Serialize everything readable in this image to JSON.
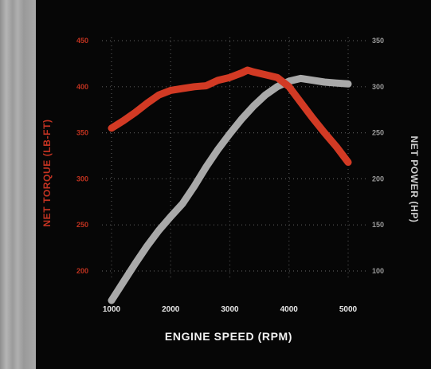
{
  "chart_data": {
    "type": "line",
    "title": "",
    "xlabel": "ENGINE SPEED (RPM)",
    "ylabel_left": "NET TORQUE (LB-FT)",
    "ylabel_right": "NET POWER (HP)",
    "xlim": [
      1000,
      5000
    ],
    "ylim_left": [
      200,
      450
    ],
    "ylim_right": [
      100,
      350
    ],
    "x_ticks": [
      "1000",
      "2000",
      "3000",
      "4000",
      "5000"
    ],
    "y_ticks_left": [
      "200",
      "250",
      "300",
      "350",
      "400",
      "450"
    ],
    "y_ticks_right": [
      "100",
      "150",
      "200",
      "250",
      "300",
      "350"
    ],
    "grid": true,
    "series": [
      {
        "axis": "left",
        "color": "#d23a24",
        "x": [
          1000,
          1200,
          1400,
          1600,
          1800,
          2000,
          2200,
          2400,
          2600,
          2800,
          3000,
          3200,
          3300,
          3400,
          3600,
          3800,
          4000,
          4200,
          4400,
          4600,
          4800,
          5000
        ],
        "values": [
          355,
          363,
          372,
          382,
          391,
          396,
          398,
          400,
          401,
          407,
          410,
          415,
          418,
          416,
          413,
          410,
          400,
          383,
          366,
          350,
          335,
          318
        ]
      },
      {
        "axis": "right",
        "color": "#a9a9a9",
        "x": [
          1000,
          1200,
          1400,
          1600,
          1800,
          2000,
          2200,
          2400,
          2600,
          2800,
          3000,
          3200,
          3400,
          3600,
          3800,
          4000,
          4200,
          4400,
          4600,
          4800,
          5000
        ],
        "values": [
          68,
          88,
          108,
          127,
          144,
          159,
          173,
          192,
          213,
          232,
          249,
          265,
          279,
          291,
          300,
          306,
          309,
          307,
          305,
          304,
          303
        ]
      }
    ]
  }
}
